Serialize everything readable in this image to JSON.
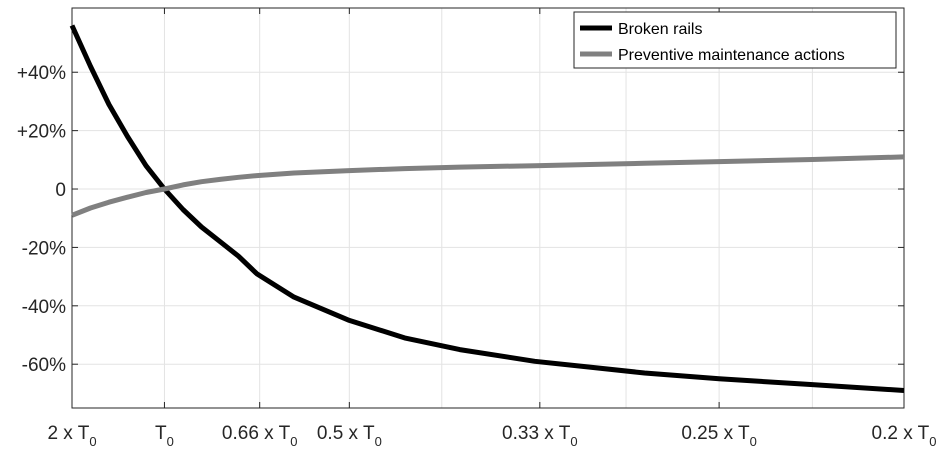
{
  "chart_data": {
    "type": "line",
    "title": "",
    "xlabel": "",
    "ylabel": "",
    "x_scale": "reciprocal",
    "xlim": [
      2,
      0.2
    ],
    "ylim": [
      -75,
      62
    ],
    "grid": true,
    "legend_position": "top-right",
    "x_ticks": [
      {
        "value": 2,
        "main": "2 x T",
        "sub": "0"
      },
      {
        "value": 1,
        "main": "T",
        "sub": "0"
      },
      {
        "value": 0.66,
        "main": "0.66 x T",
        "sub": "0"
      },
      {
        "value": 0.5,
        "main": "0.5 x T",
        "sub": "0"
      },
      {
        "value": 0.33,
        "main": "0.33 x T",
        "sub": "0"
      },
      {
        "value": 0.25,
        "main": "0.25 x T",
        "sub": "0"
      },
      {
        "value": 0.2,
        "main": "0.2 x T",
        "sub": "0"
      }
    ],
    "x_minor_grid": [
      0.4,
      0.286,
      0.222
    ],
    "y_ticks": [
      {
        "value": 40,
        "label": "+40%"
      },
      {
        "value": 20,
        "label": "+20%"
      },
      {
        "value": 0,
        "label": "0"
      },
      {
        "value": -20,
        "label": "-20%"
      },
      {
        "value": -40,
        "label": "-40%"
      },
      {
        "value": -60,
        "label": "-60%"
      }
    ],
    "series": [
      {
        "name": "Broken rails",
        "color": "#000000",
        "x": [
          2,
          1.667,
          1.429,
          1.25,
          1.111,
          1.0,
          0.909,
          0.833,
          0.769,
          0.714,
          0.667,
          0.588,
          0.5,
          0.435,
          0.385,
          0.333,
          0.303,
          0.278,
          0.25,
          0.222,
          0.2
        ],
        "y": [
          56,
          42,
          29,
          18,
          8,
          0,
          -7,
          -13,
          -18,
          -23,
          -29,
          -37,
          -45,
          -51,
          -55,
          -59,
          -61,
          -63,
          -65,
          -67,
          -69
        ]
      },
      {
        "name": "Preventive maintenance actions",
        "color": "#808080",
        "x": [
          2,
          1.667,
          1.429,
          1.25,
          1.111,
          1.0,
          0.909,
          0.833,
          0.769,
          0.714,
          0.667,
          0.588,
          0.5,
          0.435,
          0.385,
          0.333,
          0.303,
          0.278,
          0.25,
          0.222,
          0.2
        ],
        "y": [
          -9,
          -6.5,
          -4.5,
          -2.8,
          -1.2,
          0,
          1.4,
          2.5,
          3.3,
          4.0,
          4.6,
          5.5,
          6.3,
          7.0,
          7.5,
          8.0,
          8.4,
          8.8,
          9.4,
          10.1,
          11
        ]
      }
    ]
  }
}
